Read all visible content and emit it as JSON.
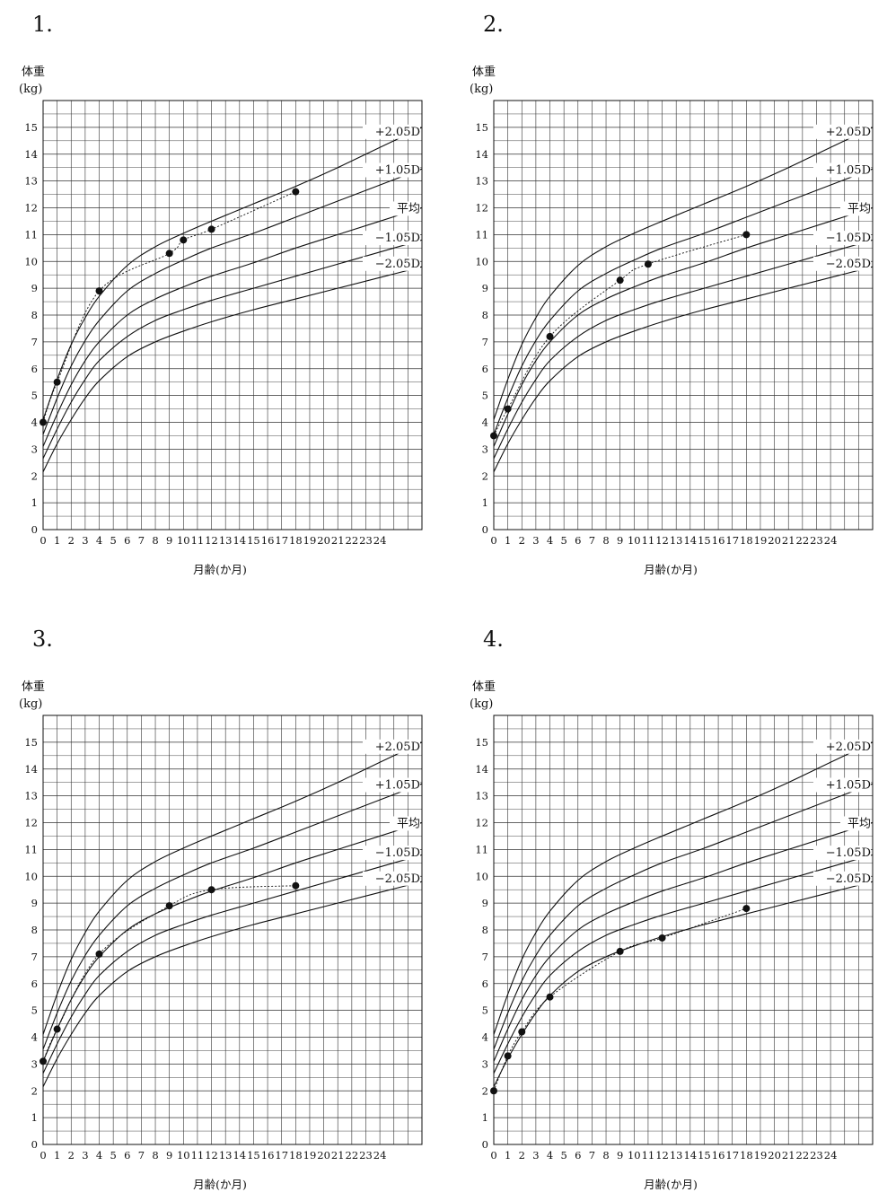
{
  "chart_data": [
    {
      "type": "line",
      "number": "1.",
      "ylabel": "体重",
      "yunit": "(kg)",
      "xlabel": "月齢(か月)",
      "xlim": [
        0,
        27
      ],
      "ylim": [
        0,
        16
      ],
      "x_ticks": [
        "0",
        "1",
        "2",
        "3",
        "4",
        "5",
        "6",
        "7",
        "8",
        "9",
        "10",
        "11",
        "12",
        "13",
        "14",
        "15",
        "16",
        "17",
        "18",
        "19",
        "20",
        "21",
        "22",
        "23",
        "24"
      ],
      "y_ticks": [
        "0",
        "1",
        "2",
        "3",
        "4",
        "5",
        "6",
        "7",
        "8",
        "9",
        "10",
        "11",
        "12",
        "13",
        "14",
        "15"
      ],
      "reference_curves": [
        {
          "name": "+2.05D",
          "x": [
            0,
            1,
            2,
            3,
            4,
            6,
            8,
            10,
            12,
            15,
            18,
            21,
            24,
            27
          ],
          "y": [
            4.1,
            5.6,
            6.9,
            7.9,
            8.7,
            9.85,
            10.55,
            11.05,
            11.5,
            12.15,
            12.8,
            13.5,
            14.25,
            15.0
          ]
        },
        {
          "name": "+1.05D",
          "x": [
            0,
            1,
            2,
            3,
            4,
            6,
            8,
            10,
            12,
            15,
            18,
            21,
            24,
            27
          ],
          "y": [
            3.55,
            4.9,
            6.1,
            7.05,
            7.8,
            8.9,
            9.55,
            10.05,
            10.5,
            11.05,
            11.65,
            12.25,
            12.85,
            13.45
          ]
        },
        {
          "name": "平均",
          "x": [
            0,
            1,
            2,
            3,
            4,
            6,
            8,
            10,
            12,
            15,
            18,
            21,
            24,
            27
          ],
          "y": [
            3.1,
            4.3,
            5.4,
            6.3,
            7.0,
            8.0,
            8.6,
            9.05,
            9.45,
            9.95,
            10.5,
            11.0,
            11.5,
            12.0
          ]
        },
        {
          "name": "−1.05D",
          "x": [
            0,
            1,
            2,
            3,
            4,
            6,
            8,
            10,
            12,
            15,
            18,
            21,
            24,
            27
          ],
          "y": [
            2.65,
            3.75,
            4.75,
            5.6,
            6.3,
            7.2,
            7.8,
            8.2,
            8.55,
            9.0,
            9.45,
            9.9,
            10.35,
            10.8
          ]
        },
        {
          "name": "−2.05D",
          "x": [
            0,
            1,
            2,
            3,
            4,
            6,
            8,
            10,
            12,
            15,
            18,
            21,
            24,
            27
          ],
          "y": [
            2.15,
            3.2,
            4.1,
            4.9,
            5.55,
            6.45,
            7.0,
            7.4,
            7.75,
            8.2,
            8.6,
            9.0,
            9.4,
            9.8
          ]
        }
      ],
      "series": [
        {
          "x": [
            0,
            1,
            4,
            9,
            10,
            12,
            18
          ],
          "y": [
            4.0,
            5.5,
            8.9,
            10.3,
            10.8,
            11.2,
            12.6
          ]
        }
      ]
    },
    {
      "type": "line",
      "number": "2.",
      "ylabel": "体重",
      "yunit": "(kg)",
      "xlabel": "月齢(か月)",
      "xlim": [
        0,
        27
      ],
      "ylim": [
        0,
        16
      ],
      "x_ticks": [
        "0",
        "1",
        "2",
        "3",
        "4",
        "5",
        "6",
        "7",
        "8",
        "9",
        "10",
        "11",
        "12",
        "13",
        "14",
        "15",
        "16",
        "17",
        "18",
        "19",
        "20",
        "21",
        "22",
        "23",
        "24"
      ],
      "y_ticks": [
        "0",
        "1",
        "2",
        "3",
        "4",
        "5",
        "6",
        "7",
        "8",
        "9",
        "10",
        "11",
        "12",
        "13",
        "14",
        "15"
      ],
      "reference_curves": [
        {
          "name": "+2.05D",
          "x": [
            0,
            1,
            2,
            3,
            4,
            6,
            8,
            10,
            12,
            15,
            18,
            21,
            24,
            27
          ],
          "y": [
            4.1,
            5.6,
            6.9,
            7.9,
            8.7,
            9.85,
            10.55,
            11.05,
            11.5,
            12.15,
            12.8,
            13.5,
            14.25,
            15.0
          ]
        },
        {
          "name": "+1.05D",
          "x": [
            0,
            1,
            2,
            3,
            4,
            6,
            8,
            10,
            12,
            15,
            18,
            21,
            24,
            27
          ],
          "y": [
            3.55,
            4.9,
            6.1,
            7.05,
            7.8,
            8.9,
            9.55,
            10.05,
            10.5,
            11.05,
            11.65,
            12.25,
            12.85,
            13.45
          ]
        },
        {
          "name": "平均",
          "x": [
            0,
            1,
            2,
            3,
            4,
            6,
            8,
            10,
            12,
            15,
            18,
            21,
            24,
            27
          ],
          "y": [
            3.1,
            4.3,
            5.4,
            6.3,
            7.0,
            8.0,
            8.6,
            9.05,
            9.45,
            9.95,
            10.5,
            11.0,
            11.5,
            12.0
          ]
        },
        {
          "name": "−1.05D",
          "x": [
            0,
            1,
            2,
            3,
            4,
            6,
            8,
            10,
            12,
            15,
            18,
            21,
            24,
            27
          ],
          "y": [
            2.65,
            3.75,
            4.75,
            5.6,
            6.3,
            7.2,
            7.8,
            8.2,
            8.55,
            9.0,
            9.45,
            9.9,
            10.35,
            10.8
          ]
        },
        {
          "name": "−2.05D",
          "x": [
            0,
            1,
            2,
            3,
            4,
            6,
            8,
            10,
            12,
            15,
            18,
            21,
            24,
            27
          ],
          "y": [
            2.15,
            3.2,
            4.1,
            4.9,
            5.55,
            6.45,
            7.0,
            7.4,
            7.75,
            8.2,
            8.6,
            9.0,
            9.4,
            9.8
          ]
        }
      ],
      "series": [
        {
          "x": [
            0,
            1,
            4,
            9,
            11,
            18
          ],
          "y": [
            3.5,
            4.5,
            7.2,
            9.3,
            9.9,
            11.0
          ]
        }
      ]
    },
    {
      "type": "line",
      "number": "3.",
      "ylabel": "体重",
      "yunit": "(kg)",
      "xlabel": "月齢(か月)",
      "xlim": [
        0,
        27
      ],
      "ylim": [
        0,
        16
      ],
      "x_ticks": [
        "0",
        "1",
        "2",
        "3",
        "4",
        "5",
        "6",
        "7",
        "8",
        "9",
        "10",
        "11",
        "12",
        "13",
        "14",
        "15",
        "16",
        "17",
        "18",
        "19",
        "20",
        "21",
        "22",
        "23",
        "24"
      ],
      "y_ticks": [
        "0",
        "1",
        "2",
        "3",
        "4",
        "5",
        "6",
        "7",
        "8",
        "9",
        "10",
        "11",
        "12",
        "13",
        "14",
        "15"
      ],
      "reference_curves": [
        {
          "name": "+2.05D",
          "x": [
            0,
            1,
            2,
            3,
            4,
            6,
            8,
            10,
            12,
            15,
            18,
            21,
            24,
            27
          ],
          "y": [
            4.1,
            5.6,
            6.9,
            7.9,
            8.7,
            9.85,
            10.55,
            11.05,
            11.5,
            12.15,
            12.8,
            13.5,
            14.25,
            15.0
          ]
        },
        {
          "name": "+1.05D",
          "x": [
            0,
            1,
            2,
            3,
            4,
            6,
            8,
            10,
            12,
            15,
            18,
            21,
            24,
            27
          ],
          "y": [
            3.55,
            4.9,
            6.1,
            7.05,
            7.8,
            8.9,
            9.55,
            10.05,
            10.5,
            11.05,
            11.65,
            12.25,
            12.85,
            13.45
          ]
        },
        {
          "name": "平均",
          "x": [
            0,
            1,
            2,
            3,
            4,
            6,
            8,
            10,
            12,
            15,
            18,
            21,
            24,
            27
          ],
          "y": [
            3.1,
            4.3,
            5.4,
            6.3,
            7.0,
            8.0,
            8.6,
            9.05,
            9.45,
            9.95,
            10.5,
            11.0,
            11.5,
            12.0
          ]
        },
        {
          "name": "−1.05D",
          "x": [
            0,
            1,
            2,
            3,
            4,
            6,
            8,
            10,
            12,
            15,
            18,
            21,
            24,
            27
          ],
          "y": [
            2.65,
            3.75,
            4.75,
            5.6,
            6.3,
            7.2,
            7.8,
            8.2,
            8.55,
            9.0,
            9.45,
            9.9,
            10.35,
            10.8
          ]
        },
        {
          "name": "−2.05D",
          "x": [
            0,
            1,
            2,
            3,
            4,
            6,
            8,
            10,
            12,
            15,
            18,
            21,
            24,
            27
          ],
          "y": [
            2.15,
            3.2,
            4.1,
            4.9,
            5.55,
            6.45,
            7.0,
            7.4,
            7.75,
            8.2,
            8.6,
            9.0,
            9.4,
            9.8
          ]
        }
      ],
      "series": [
        {
          "x": [
            0,
            1,
            4,
            9,
            12,
            18
          ],
          "y": [
            3.1,
            4.3,
            7.1,
            8.9,
            9.5,
            9.65
          ]
        }
      ]
    },
    {
      "type": "line",
      "number": "4.",
      "ylabel": "体重",
      "yunit": "(kg)",
      "xlabel": "月齢(か月)",
      "xlim": [
        0,
        27
      ],
      "ylim": [
        0,
        16
      ],
      "x_ticks": [
        "0",
        "1",
        "2",
        "3",
        "4",
        "5",
        "6",
        "7",
        "8",
        "9",
        "10",
        "11",
        "12",
        "13",
        "14",
        "15",
        "16",
        "17",
        "18",
        "19",
        "20",
        "21",
        "22",
        "23",
        "24"
      ],
      "y_ticks": [
        "0",
        "1",
        "2",
        "3",
        "4",
        "5",
        "6",
        "7",
        "8",
        "9",
        "10",
        "11",
        "12",
        "13",
        "14",
        "15"
      ],
      "reference_curves": [
        {
          "name": "+2.05D",
          "x": [
            0,
            1,
            2,
            3,
            4,
            6,
            8,
            10,
            12,
            15,
            18,
            21,
            24,
            27
          ],
          "y": [
            4.1,
            5.6,
            6.9,
            7.9,
            8.7,
            9.85,
            10.55,
            11.05,
            11.5,
            12.15,
            12.8,
            13.5,
            14.25,
            15.0
          ]
        },
        {
          "name": "+1.05D",
          "x": [
            0,
            1,
            2,
            3,
            4,
            6,
            8,
            10,
            12,
            15,
            18,
            21,
            24,
            27
          ],
          "y": [
            3.55,
            4.9,
            6.1,
            7.05,
            7.8,
            8.9,
            9.55,
            10.05,
            10.5,
            11.05,
            11.65,
            12.25,
            12.85,
            13.45
          ]
        },
        {
          "name": "平均",
          "x": [
            0,
            1,
            2,
            3,
            4,
            6,
            8,
            10,
            12,
            15,
            18,
            21,
            24,
            27
          ],
          "y": [
            3.1,
            4.3,
            5.4,
            6.3,
            7.0,
            8.0,
            8.6,
            9.05,
            9.45,
            9.95,
            10.5,
            11.0,
            11.5,
            12.0
          ]
        },
        {
          "name": "−1.05D",
          "x": [
            0,
            1,
            2,
            3,
            4,
            6,
            8,
            10,
            12,
            15,
            18,
            21,
            24,
            27
          ],
          "y": [
            2.65,
            3.75,
            4.75,
            5.6,
            6.3,
            7.2,
            7.8,
            8.2,
            8.55,
            9.0,
            9.45,
            9.9,
            10.35,
            10.8
          ]
        },
        {
          "name": "−2.05D",
          "x": [
            0,
            1,
            2,
            3,
            4,
            6,
            8,
            10,
            12,
            15,
            18,
            21,
            24,
            27
          ],
          "y": [
            2.15,
            3.2,
            4.1,
            4.9,
            5.55,
            6.45,
            7.0,
            7.4,
            7.75,
            8.2,
            8.6,
            9.0,
            9.4,
            9.8
          ]
        }
      ],
      "series": [
        {
          "x": [
            0,
            1,
            2,
            4,
            9,
            12,
            18
          ],
          "y": [
            2.0,
            3.3,
            4.2,
            5.5,
            7.2,
            7.7,
            8.8
          ]
        }
      ]
    }
  ]
}
